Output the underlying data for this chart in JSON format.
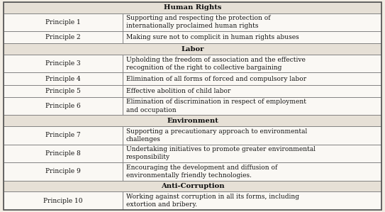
{
  "sections": [
    {
      "header": "Human Rights",
      "rows": [
        [
          "Principle 1",
          "Supporting and respecting the protection of\ninternationally proclaimed human rights"
        ],
        [
          "Principle 2",
          "Making sure not to complicit in human rights abuses"
        ]
      ]
    },
    {
      "header": "Labor",
      "rows": [
        [
          "Principle 3",
          "Upholding the freedom of association and the effective\nrecognition of the right to collective bargaining"
        ],
        [
          "Principle 4",
          "Elimination of all forms of forced and compulsory labor"
        ],
        [
          "Principle 5",
          "Effective abolition of child labor"
        ],
        [
          "Principle 6",
          "Elimination of discrimination in respect of employment\nand occupation"
        ]
      ]
    },
    {
      "header": "Environment",
      "rows": [
        [
          "Principle 7",
          "Supporting a precautionary approach to environmental\nchallenges"
        ],
        [
          "Principle 8",
          "Undertaking initiatives to promote greater environmental\nresponsibility"
        ],
        [
          "Principle 9",
          "Encouraging the development and diffusion of\nenvironmentally friendly technologies."
        ]
      ]
    },
    {
      "header": "Anti-Corruption",
      "rows": [
        [
          "Principle 10",
          "Working against corruption in all its forms, including\nextortion and bribery."
        ]
      ]
    }
  ],
  "col_split": 0.315,
  "bg_color": "#f2ede4",
  "cell_bg": "#faf8f4",
  "header_bg": "#e6e0d6",
  "border_color": "#7a7a7a",
  "text_color": "#111111",
  "font_size": 6.5,
  "header_font_size": 7.2,
  "outer_border": "#555555"
}
